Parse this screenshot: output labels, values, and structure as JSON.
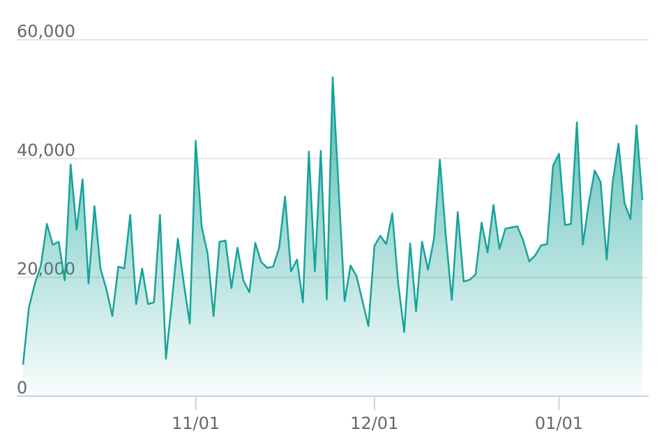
{
  "chart_data": {
    "type": "area",
    "x": [
      "10/03",
      "10/04",
      "10/05",
      "10/06",
      "10/07",
      "10/08",
      "10/09",
      "10/10",
      "10/11",
      "10/12",
      "10/13",
      "10/14",
      "10/15",
      "10/16",
      "10/17",
      "10/18",
      "10/19",
      "10/20",
      "10/21",
      "10/22",
      "10/23",
      "10/24",
      "10/25",
      "10/26",
      "10/27",
      "10/28",
      "10/29",
      "10/30",
      "10/31",
      "11/01",
      "11/02",
      "11/03",
      "11/04",
      "11/05",
      "11/06",
      "11/07",
      "11/08",
      "11/09",
      "11/10",
      "11/11",
      "11/12",
      "11/13",
      "11/14",
      "11/15",
      "11/16",
      "11/17",
      "11/18",
      "11/19",
      "11/20",
      "11/21",
      "11/22",
      "11/23",
      "11/24",
      "11/25",
      "11/26",
      "11/27",
      "11/28",
      "11/29",
      "11/30",
      "12/01",
      "12/02",
      "12/03",
      "12/04",
      "12/05",
      "12/06",
      "12/07",
      "12/08",
      "12/09",
      "12/10",
      "12/11",
      "12/12",
      "12/13",
      "12/14",
      "12/15",
      "12/16",
      "12/17",
      "12/18",
      "12/19",
      "12/20",
      "12/21",
      "12/22",
      "12/23",
      "12/24",
      "12/25",
      "12/26",
      "12/27",
      "12/28",
      "12/29",
      "12/30",
      "12/31",
      "01/01",
      "01/02",
      "01/03",
      "01/04",
      "01/05",
      "01/06",
      "01/07",
      "01/08",
      "01/09",
      "01/10",
      "01/11",
      "01/12",
      "01/13",
      "01/14",
      "01/15"
    ],
    "values": [
      5300,
      15000,
      19000,
      22000,
      29000,
      25500,
      26000,
      19500,
      39000,
      28000,
      36500,
      19000,
      32000,
      21500,
      18000,
      13500,
      21800,
      21500,
      30500,
      15500,
      21500,
      15500,
      15800,
      30500,
      6300,
      16000,
      26500,
      19000,
      12200,
      43000,
      28500,
      24000,
      13500,
      26000,
      26200,
      18200,
      25000,
      19500,
      17500,
      25800,
      22600,
      21600,
      21800,
      25000,
      33600,
      21000,
      23000,
      15800,
      41200,
      21000,
      41300,
      16300,
      53700,
      35000,
      16000,
      22000,
      20200,
      16000,
      11800,
      25300,
      27000,
      25600,
      30800,
      19000,
      10800,
      25700,
      14300,
      26000,
      21300,
      26500,
      39800,
      27000,
      16200,
      31000,
      19300,
      19600,
      20500,
      29200,
      24200,
      32200,
      24800,
      28200,
      28400,
      28600,
      26200,
      22700,
      23700,
      25400,
      25600,
      38800,
      40800,
      28800,
      29000,
      46100,
      25500,
      32500,
      38000,
      36000,
      23000,
      36000,
      42500,
      32500,
      29800,
      45600,
      33000
    ],
    "color": "#16a399",
    "xticks": [
      "11/01",
      "12/01",
      "01/01"
    ],
    "ylim": [
      0,
      60000
    ],
    "yticks": [
      0,
      {
        "value": 20000,
        "label": "20,000"
      },
      {
        "value": 40000,
        "label": "40,000"
      },
      {
        "value": 60000,
        "label": "60,000"
      }
    ],
    "grid": true
  }
}
